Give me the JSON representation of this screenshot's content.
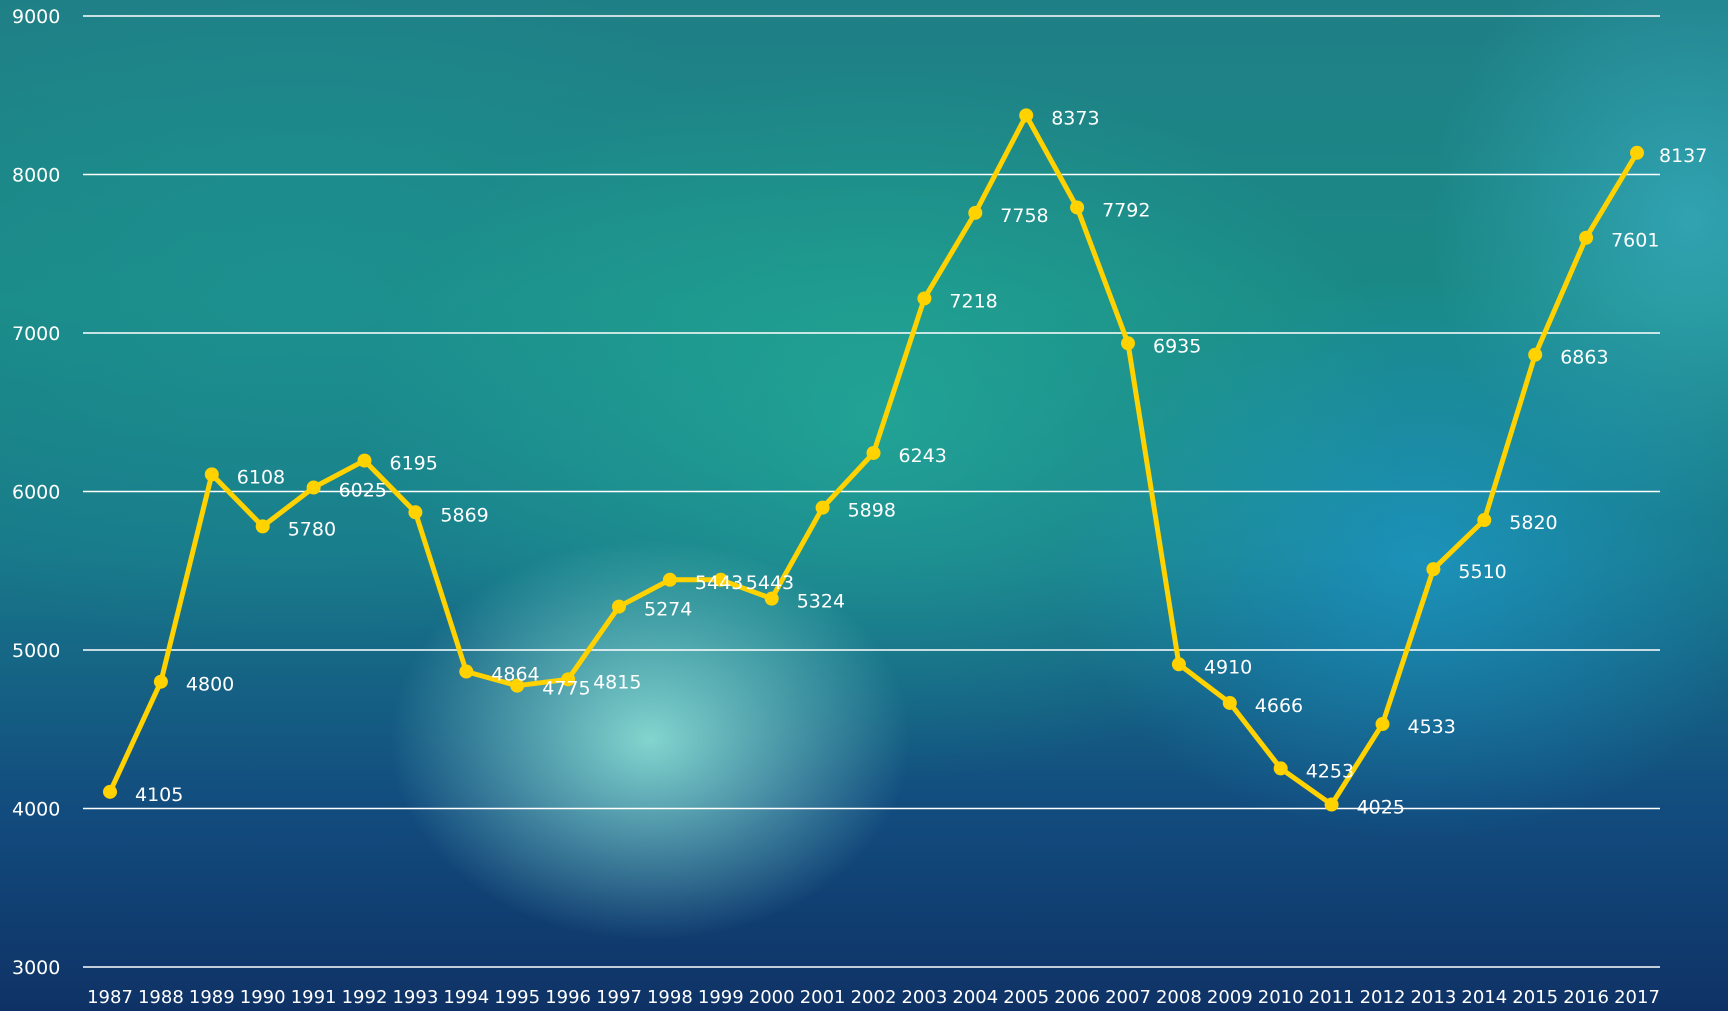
{
  "chart_data": {
    "type": "line",
    "title": "",
    "xlabel": "",
    "ylabel": "",
    "ylim": [
      3000,
      9000
    ],
    "y_ticks": [
      3000,
      4000,
      5000,
      6000,
      7000,
      8000,
      9000
    ],
    "grid": true,
    "legend": "none",
    "colors": {
      "line": "#ffd200",
      "grid": "#ffffff",
      "text": "#ffffff"
    },
    "x": [
      "1987",
      "1988",
      "1989",
      "1990",
      "1991",
      "1992",
      "1993",
      "1994",
      "1995",
      "1996",
      "1997",
      "1998",
      "1999",
      "2000",
      "2001",
      "2002",
      "2003",
      "2004",
      "2005",
      "2006",
      "2007",
      "2008",
      "2009",
      "2010",
      "2011",
      "2012",
      "2013",
      "2014",
      "2015",
      "2016",
      "2017"
    ],
    "series": [
      {
        "values": [
          4105,
          4800,
          6108,
          5780,
          6025,
          6195,
          5869,
          4864,
          4775,
          4815,
          5274,
          5443,
          5443,
          5324,
          5898,
          6243,
          7218,
          7758,
          8373,
          7792,
          6935,
          4910,
          4666,
          4253,
          4025,
          4533,
          5510,
          5820,
          6863,
          7601,
          8137
        ]
      }
    ]
  }
}
